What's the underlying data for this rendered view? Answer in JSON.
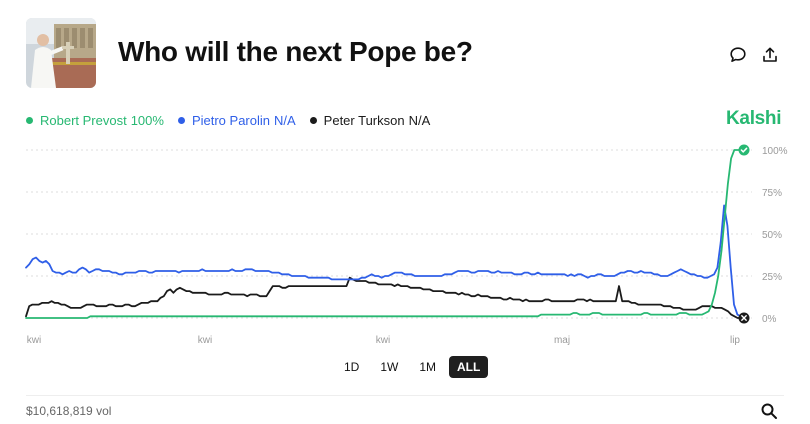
{
  "header": {
    "title": "Who will the next Pope be?",
    "thumbnail_icon": "pope-balcony-photo",
    "comment_icon": "comment-icon",
    "share_icon": "share-icon"
  },
  "brand": {
    "name": "Kalshi",
    "color": "#27b872"
  },
  "legend": [
    {
      "name": "Robert Prevost",
      "value": "100%",
      "color": "#27b872"
    },
    {
      "name": "Pietro Parolin",
      "value": "N/A",
      "color": "#2f5fe8"
    },
    {
      "name": "Peter Turkson",
      "value": "N/A",
      "color": "#1b1b1b"
    }
  ],
  "range_buttons": [
    {
      "label": "1D",
      "active": false
    },
    {
      "label": "1W",
      "active": false
    },
    {
      "label": "1M",
      "active": false
    },
    {
      "label": "ALL",
      "active": true
    }
  ],
  "footer": {
    "volume": "$10,618,819 vol",
    "search_icon": "search-icon"
  },
  "chart_data": {
    "type": "line",
    "title": "",
    "xlabel": "",
    "ylabel": "",
    "ylim": [
      0,
      100
    ],
    "grid": true,
    "legend_position": "top-left",
    "y_ticks": [
      "100%",
      "75%",
      "50%",
      "25%",
      "0%"
    ],
    "x_ticks": [
      "kwi",
      "kwi",
      "kwi",
      "maj",
      "lip"
    ],
    "series": [
      {
        "name": "Robert Prevost",
        "color": "#27b872",
        "end_marker": "check",
        "values": [
          0,
          0,
          0,
          0,
          0,
          0,
          0,
          0,
          0,
          0,
          0,
          0,
          0,
          0,
          0,
          0,
          0,
          0,
          0,
          0,
          1,
          1,
          1,
          1,
          1,
          1,
          1,
          1,
          1,
          1,
          1,
          1,
          1,
          1,
          1,
          1,
          1,
          1,
          1,
          1,
          1,
          1,
          1,
          1,
          1,
          1,
          1,
          1,
          1,
          1,
          1,
          1,
          1,
          1,
          1,
          1,
          1,
          1,
          1,
          1,
          1,
          1,
          1,
          1,
          1,
          1,
          1,
          1,
          1,
          1,
          1,
          1,
          1,
          1,
          1,
          1,
          1,
          1,
          1,
          1,
          1,
          1,
          1,
          1,
          1,
          1,
          1,
          1,
          1,
          1,
          1,
          1,
          1,
          1,
          1,
          1,
          1,
          1,
          1,
          1,
          1,
          1,
          1,
          1,
          1,
          1,
          1,
          1,
          1,
          1,
          1,
          1,
          1,
          1,
          1,
          1,
          1,
          1,
          1,
          1,
          1,
          1,
          1,
          1,
          1,
          1,
          1,
          1,
          1,
          1,
          1,
          1,
          1,
          1,
          1,
          1,
          1,
          1,
          1,
          1,
          1,
          1,
          1,
          1,
          1,
          1,
          1,
          1,
          1,
          1,
          1,
          1,
          1,
          1,
          1,
          1,
          1,
          1,
          1,
          1,
          2,
          2,
          2,
          2,
          2,
          2,
          2,
          2,
          2,
          2,
          3,
          3,
          2,
          2,
          2,
          2,
          3,
          3,
          3,
          2,
          2,
          2,
          2,
          2,
          2,
          2,
          2,
          2,
          2,
          2,
          2,
          2,
          3,
          3,
          2,
          2,
          2,
          2,
          2,
          2,
          2,
          2,
          2,
          3,
          3,
          3,
          2,
          2,
          2,
          2,
          2,
          3,
          4,
          8,
          15,
          25,
          40,
          60,
          80,
          95,
          100,
          100,
          100,
          100
        ]
      },
      {
        "name": "Pietro Parolin",
        "color": "#2f5fe8",
        "end_marker": "none",
        "values": [
          30,
          32,
          35,
          36,
          34,
          33,
          34,
          32,
          28,
          27,
          27,
          26,
          27,
          28,
          27,
          27,
          29,
          30,
          29,
          27,
          28,
          29,
          29,
          28,
          28,
          28,
          27,
          27,
          26,
          26,
          27,
          27,
          27,
          27,
          28,
          28,
          28,
          27,
          27,
          28,
          28,
          28,
          28,
          28,
          28,
          28,
          27,
          28,
          28,
          28,
          28,
          28,
          28,
          29,
          28,
          28,
          28,
          28,
          28,
          28,
          28,
          28,
          29,
          28,
          28,
          28,
          29,
          29,
          29,
          28,
          28,
          28,
          28,
          28,
          27,
          27,
          27,
          26,
          26,
          26,
          25,
          25,
          25,
          25,
          25,
          24,
          24,
          24,
          24,
          24,
          24,
          24,
          23,
          23,
          23,
          23,
          23,
          23,
          23,
          23,
          23,
          24,
          24,
          25,
          26,
          25,
          25,
          24,
          25,
          25,
          26,
          27,
          27,
          27,
          26,
          26,
          26,
          25,
          25,
          25,
          25,
          25,
          25,
          25,
          25,
          25,
          26,
          26,
          26,
          27,
          28,
          28,
          28,
          28,
          27,
          27,
          28,
          28,
          28,
          28,
          27,
          27,
          28,
          27,
          27,
          27,
          27,
          26,
          26,
          26,
          27,
          27,
          26,
          26,
          27,
          26,
          26,
          26,
          26,
          26,
          26,
          26,
          26,
          25,
          26,
          25,
          26,
          26,
          25,
          24,
          25,
          25,
          26,
          26,
          25,
          25,
          25,
          25,
          26,
          27,
          27,
          28,
          28,
          27,
          27,
          28,
          27,
          27,
          27,
          26,
          26,
          25,
          25,
          25,
          26,
          27,
          28,
          29,
          28,
          27,
          26,
          26,
          25,
          25,
          24,
          24,
          25,
          26,
          30,
          45,
          67,
          55,
          30,
          8,
          2,
          1,
          1
        ]
      },
      {
        "name": "Peter Turkson",
        "color": "#1b1b1b",
        "end_marker": "x",
        "values": [
          1,
          7,
          8,
          8,
          8,
          9,
          9,
          9,
          10,
          9,
          9,
          8,
          8,
          7,
          6,
          6,
          6,
          6,
          7,
          8,
          8,
          8,
          7,
          7,
          7,
          7,
          8,
          8,
          7,
          7,
          7,
          8,
          8,
          7,
          7,
          8,
          9,
          9,
          9,
          10,
          10,
          10,
          12,
          13,
          16,
          17,
          15,
          17,
          18,
          17,
          16,
          16,
          15,
          15,
          15,
          15,
          15,
          14,
          14,
          14,
          14,
          14,
          15,
          15,
          14,
          14,
          14,
          14,
          14,
          13,
          14,
          14,
          14,
          13,
          13,
          13,
          16,
          19,
          19,
          19,
          18,
          18,
          19,
          19,
          19,
          19,
          19,
          19,
          19,
          19,
          19,
          19,
          19,
          19,
          19,
          19,
          19,
          19,
          19,
          19,
          19,
          24,
          23,
          22,
          22,
          22,
          22,
          21,
          21,
          21,
          20,
          20,
          20,
          20,
          20,
          19,
          20,
          19,
          19,
          19,
          18,
          18,
          18,
          18,
          17,
          17,
          17,
          16,
          16,
          16,
          16,
          15,
          15,
          15,
          15,
          14,
          15,
          14,
          14,
          13,
          13,
          14,
          13,
          13,
          13,
          12,
          12,
          12,
          12,
          11,
          11,
          12,
          11,
          11,
          11,
          10,
          11,
          10,
          10,
          10,
          10,
          10,
          11,
          11,
          10,
          10,
          10,
          10,
          10,
          10,
          10,
          10,
          11,
          11,
          11,
          10,
          11,
          10,
          10,
          10,
          10,
          10,
          10,
          10,
          10,
          19,
          10,
          10,
          10,
          9,
          9,
          8,
          8,
          8,
          8,
          8,
          8,
          8,
          8,
          7,
          7,
          7,
          6,
          6,
          6,
          5,
          5,
          5,
          5,
          5,
          6,
          7,
          7,
          7,
          7,
          6,
          6,
          6,
          5,
          4,
          2,
          1,
          0,
          0,
          0
        ]
      }
    ]
  }
}
